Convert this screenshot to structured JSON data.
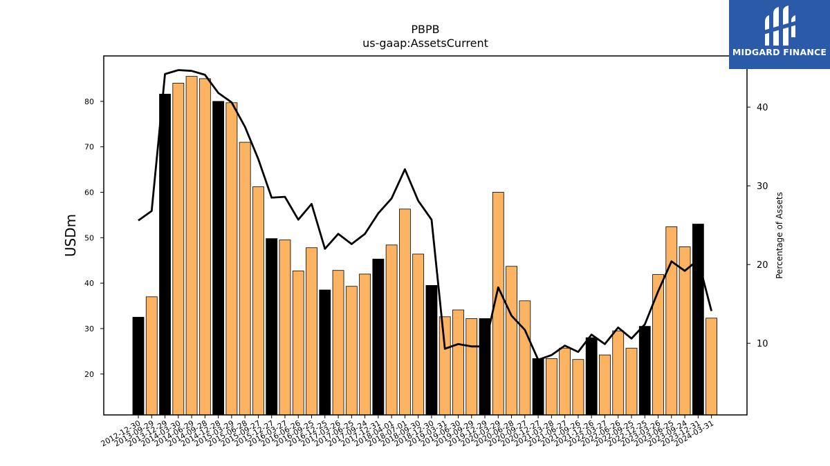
{
  "chart_data": {
    "type": "bar+line",
    "title": "PBPB",
    "subtitle": "us-gaap:AssetsCurrent",
    "ylabel": "USDm",
    "y2label": "Percentage of Assets",
    "ylim": [
      11,
      90
    ],
    "y2lim": [
      0.9,
      46.5
    ],
    "yticks": [
      20,
      30,
      40,
      50,
      60,
      70,
      80
    ],
    "y2ticks": [
      10,
      20,
      30,
      40
    ],
    "categories": [
      "2012-12-30",
      "2013-09-29",
      "2013-12-29",
      "2014-03-30",
      "2014-06-29",
      "2014-09-28",
      "2014-12-28",
      "2015-03-29",
      "2015-06-28",
      "2015-09-27",
      "2015-12-27",
      "2016-03-27",
      "2016-06-26",
      "2016-09-25",
      "2016-12-25",
      "2017-03-26",
      "2017-06-25",
      "2017-09-24",
      "2017-12-31",
      "2018-04-01",
      "2018-07-01",
      "2018-09-30",
      "2018-12-30",
      "2019-03-31",
      "2019-06-30",
      "2019-09-29",
      "2019-12-29",
      "2020-03-29",
      "2020-06-28",
      "2020-09-27",
      "2020-12-27",
      "2021-03-28",
      "2021-06-27",
      "2021-09-26",
      "2021-12-26",
      "2022-03-27",
      "2022-06-26",
      "2022-09-25",
      "2022-12-25",
      "2023-03-26",
      "2023-06-25",
      "2023-09-24",
      "2023-12-31",
      "2024-03-31"
    ],
    "series": [
      {
        "type": "bar",
        "values": [
          32.5,
          37,
          81.6,
          84,
          85.5,
          85,
          80,
          79.7,
          71,
          61.2,
          49.8,
          49.5,
          42.7,
          47.8,
          38.5,
          42.8,
          39.3,
          42,
          45.3,
          48.4,
          56.3,
          46.4,
          39.5,
          32.6,
          34.1,
          32.2,
          32.2,
          60,
          43.7,
          36.1,
          23.4,
          23.4,
          25.7,
          23.2,
          28,
          24.2,
          29.5,
          25.7,
          30.5,
          41.9,
          52.4,
          48,
          53,
          32.3
        ],
        "highlight": [
          true,
          false,
          true,
          false,
          false,
          false,
          true,
          false,
          false,
          false,
          true,
          false,
          false,
          false,
          true,
          false,
          false,
          false,
          true,
          false,
          false,
          false,
          true,
          false,
          false,
          false,
          true,
          false,
          false,
          false,
          true,
          false,
          false,
          false,
          true,
          false,
          false,
          false,
          true,
          false,
          false,
          false,
          true,
          false
        ]
      },
      {
        "type": "line",
        "axis": "right",
        "values": [
          25.6,
          26.8,
          44.2,
          44.7,
          44.6,
          44.1,
          41.8,
          40.6,
          37.5,
          33.4,
          28.5,
          28.6,
          25.7,
          27.7,
          22,
          23.9,
          22.6,
          23.9,
          26.5,
          28.4,
          32.1,
          28.1,
          25.7,
          9.3,
          9.9,
          9.6,
          9.6,
          17.1,
          13.5,
          11.7,
          7.9,
          8.5,
          9.7,
          8.9,
          11.1,
          9.9,
          12,
          10.6,
          12.4,
          16.6,
          20.4,
          19.2,
          20.6,
          14.1
        ]
      }
    ],
    "colors": {
      "bar": "#fdb462",
      "bar_highlight": "#000000",
      "line": "#000000"
    }
  },
  "branding": {
    "logo_text": "MIDGARD FINANCE"
  }
}
